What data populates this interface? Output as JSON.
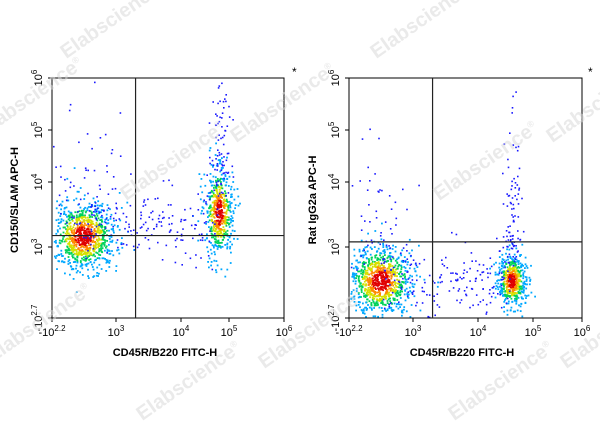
{
  "watermark": {
    "text": "Elabscience",
    "mark": "®"
  },
  "chart_data": [
    {
      "type": "scatter",
      "subtype": "flow-cytometry-density-dot-plot",
      "ylabel": "CD150/SLAM APC-H",
      "xlabel": "CD45R/B220 FITC-H",
      "corner_mark": "*",
      "x_ticks": [
        {
          "label_base": "-10",
          "label_exp": "2.2",
          "value": -158
        },
        {
          "label_base": "10",
          "label_exp": "3",
          "value": 1000
        },
        {
          "label_base": "10",
          "label_exp": "4",
          "value": 10000
        },
        {
          "label_base": "10",
          "label_exp": "5",
          "value": 100000
        },
        {
          "label_base": "10",
          "label_exp": "6",
          "value": 1000000
        }
      ],
      "y_ticks": [
        {
          "label_base": "-10",
          "label_exp": "2.7",
          "value": -501
        },
        {
          "label_base": "10",
          "label_exp": "3",
          "value": 1000
        },
        {
          "label_base": "10",
          "label_exp": "4",
          "value": 10000
        },
        {
          "label_base": "10",
          "label_exp": "5",
          "value": 100000
        },
        {
          "label_base": "10",
          "label_exp": "6",
          "value": 1000000
        }
      ],
      "quadrant_gate": {
        "x": 2000,
        "y": 1500
      },
      "populations": [
        {
          "name": "B220-neg",
          "x_center": 400,
          "y_center": 1500,
          "density": "high"
        },
        {
          "name": "B220-pos",
          "x_center": 60000,
          "y_center": 3500,
          "density": "high"
        }
      ]
    },
    {
      "type": "scatter",
      "subtype": "flow-cytometry-density-dot-plot",
      "ylabel": "Rat IgG2a APC-H",
      "xlabel": "CD45R/B220 FITC-H",
      "corner_mark": "*",
      "x_ticks": [
        {
          "label_base": "-10",
          "label_exp": "2.2",
          "value": -158
        },
        {
          "label_base": "10",
          "label_exp": "3",
          "value": 1000
        },
        {
          "label_base": "10",
          "label_exp": "4",
          "value": 10000
        },
        {
          "label_base": "10",
          "label_exp": "5",
          "value": 100000
        },
        {
          "label_base": "10",
          "label_exp": "6",
          "value": 1000000
        }
      ],
      "y_ticks": [
        {
          "label_base": "-10",
          "label_exp": "2.7",
          "value": -501
        },
        {
          "label_base": "10",
          "label_exp": "3",
          "value": 1000
        },
        {
          "label_base": "10",
          "label_exp": "4",
          "value": 10000
        },
        {
          "label_base": "10",
          "label_exp": "5",
          "value": 100000
        },
        {
          "label_base": "10",
          "label_exp": "6",
          "value": 1000000
        }
      ],
      "quadrant_gate": {
        "x": 2000,
        "y": 1200
      },
      "populations": [
        {
          "name": "B220-neg",
          "x_center": 400,
          "y_center": 300,
          "density": "high"
        },
        {
          "name": "B220-pos",
          "x_center": 40000,
          "y_center": 300,
          "density": "high"
        }
      ]
    }
  ]
}
